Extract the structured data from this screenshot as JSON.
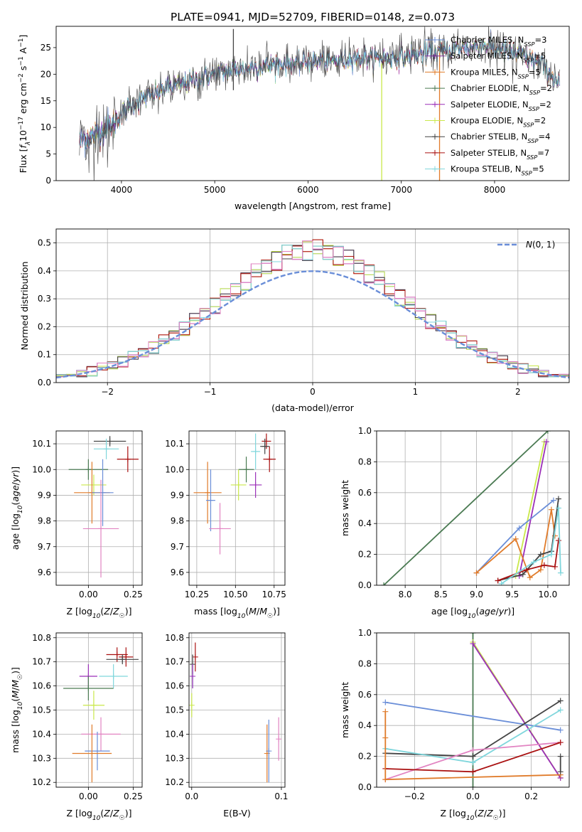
{
  "figure": {
    "title": "PLATE=0941, MJD=52709, FIBERID=0148, z=0.073"
  },
  "colors": {
    "Chabrier MILES": "#6a8ed8",
    "Salpeter MILES": "#7b2f9a",
    "Kroupa MILES": "#e07b2a",
    "Chabrier ELODIE": "#4a7a52",
    "Salpeter ELODIE": "#9b2fb8",
    "Kroupa ELODIE": "#c9e84a",
    "Chabrier STELIB": "#444444",
    "Salpeter STELIB": "#aa1111",
    "Kroupa STELIB": "#7fd6dc",
    "pink": "#e284c2",
    "normal": "#6a8ed8"
  },
  "chart_data": [
    {
      "id": "spectrum",
      "type": "line",
      "xlabel": "wavelength [Angstrom, rest frame]",
      "ylabel": "Flux [f_λ10^-17 erg cm^-2 s^-1 A^-1]",
      "xlim": [
        3300,
        8800
      ],
      "ylim": [
        0,
        29
      ],
      "xticks": [
        4000,
        5000,
        6000,
        7000,
        8000
      ],
      "yticks": [
        0,
        5,
        10,
        15,
        20,
        25
      ],
      "legend": "top-right",
      "legend_entries": [
        {
          "label": "Chabrier MILES, N",
          "sub": "SSP",
          "suffix": "=3"
        },
        {
          "label": "Salpeter MILES, N",
          "sub": "SSP",
          "suffix": "=5"
        },
        {
          "label": "Kroupa MILES, N",
          "sub": "SSP",
          "suffix": "=5"
        },
        {
          "label": "Chabrier ELODIE, N",
          "sub": "SSP",
          "suffix": "=2"
        },
        {
          "label": "Salpeter ELODIE, N",
          "sub": "SSP",
          "suffix": "=2"
        },
        {
          "label": "Kroupa ELODIE, N",
          "sub": "SSP",
          "suffix": "=2"
        },
        {
          "label": "Chabrier STELIB, N",
          "sub": "SSP",
          "suffix": "=4"
        },
        {
          "label": "Salpeter STELIB, N",
          "sub": "SSP",
          "suffix": "=7"
        },
        {
          "label": "Kroupa STELIB, N",
          "sub": "SSP",
          "suffix": "=5"
        }
      ],
      "continuum": {
        "x": [
          3550,
          3700,
          3900,
          4000,
          4100,
          4300,
          4500,
          4700,
          4900,
          5100,
          5300,
          5500,
          5700,
          5900,
          6100,
          6300,
          6500,
          6700,
          6900,
          7100,
          7300,
          7500,
          7700,
          7900,
          8100,
          8300,
          8500,
          8700
        ],
        "y": [
          7.5,
          8.5,
          10.5,
          12.5,
          14.0,
          16.0,
          17.5,
          18.5,
          19.5,
          20.5,
          21.0,
          21.5,
          22.0,
          22.0,
          22.5,
          22.5,
          23.0,
          23.0,
          23.0,
          23.5,
          24.0,
          24.5,
          25.0,
          25.5,
          24.5,
          23.5,
          22.0,
          18.0
        ]
      },
      "noise_sd": 1.1,
      "gaps": [
        {
          "x": 6790,
          "ymin": 0,
          "ymax": 22,
          "series": "Kroupa ELODIE"
        },
        {
          "x": 7410,
          "ymin": 0,
          "ymax": 24,
          "series": "Kroupa MILES"
        },
        {
          "x": 5200,
          "ymin": 17,
          "ymax": 28.5,
          "series": "Chabrier STELIB"
        }
      ]
    },
    {
      "id": "residuals",
      "type": "histogram",
      "xlabel": "(data-model)/error",
      "ylabel": "Normed distribution",
      "xlim": [
        -2.5,
        2.5
      ],
      "ylim": [
        0,
        0.55
      ],
      "xticks": [
        -2,
        -1,
        0,
        1,
        2
      ],
      "yticks": [
        0,
        0.1,
        0.2,
        0.3,
        0.4,
        0.5
      ],
      "grid": true,
      "bin_width": 0.1,
      "legend": "top-right",
      "legend_entry": "N(0,1)",
      "deviations": [
        0.051,
        -0.012,
        0.09,
        0.028,
        -0.08,
        0.035,
        -0.064,
        0.079,
        0.01,
        -0.046,
        0.072,
        -0.03,
        0.057,
        -0.088,
        0.004
      ]
    },
    {
      "id": "z-age",
      "type": "scatter",
      "xlabel": "Z [log10(Z/Z☉)]",
      "ylabel": "age [log10(age/yr)]",
      "xlim": [
        -0.18,
        0.3
      ],
      "ylim": [
        9.55,
        10.15
      ],
      "xticks": [
        0.0,
        0.25
      ],
      "yticks": [
        9.6,
        9.7,
        9.8,
        9.9,
        10.0,
        10.1
      ],
      "grid": true,
      "points": [
        {
          "series": "Chabrier STELIB",
          "x": 0.12,
          "xerr": 0.09,
          "y": 10.11,
          "yerr": 0.02
        },
        {
          "series": "Kroupa STELIB",
          "x": 0.1,
          "xerr": 0.07,
          "y": 10.08,
          "yerr": 0.04
        },
        {
          "series": "Salpeter STELIB",
          "x": 0.22,
          "xerr": 0.06,
          "y": 10.04,
          "yerr": 0.05
        },
        {
          "series": "Chabrier ELODIE",
          "x": 0.0,
          "xerr": 0.11,
          "y": 10.0,
          "yerr": 0.04
        },
        {
          "series": "Kroupa ELODIE",
          "x": 0.03,
          "xerr": 0.07,
          "y": 9.94,
          "yerr": 0.04
        },
        {
          "series": "Kroupa MILES",
          "x": 0.02,
          "xerr": 0.1,
          "y": 9.91,
          "yerr": 0.12
        },
        {
          "series": "Chabrier MILES",
          "x": 0.08,
          "xerr": 0.06,
          "y": 9.91,
          "yerr": 0.13
        },
        {
          "series": "pink",
          "x": 0.07,
          "xerr": 0.1,
          "y": 9.77,
          "yerr": 0.19
        }
      ]
    },
    {
      "id": "mass-age",
      "type": "scatter",
      "xlabel": "mass [log10(M/M☉)]",
      "ylabel": "",
      "xlim": [
        10.2,
        10.82
      ],
      "ylim": [
        9.55,
        10.15
      ],
      "xticks": [
        10.25,
        10.5,
        10.75
      ],
      "yticks": [
        9.6,
        9.7,
        9.8,
        9.9,
        10.0,
        10.1
      ],
      "grid": true,
      "points": [
        {
          "series": "Salpeter STELIB",
          "x": 10.7,
          "xerr": 0.03,
          "y": 10.11,
          "yerr": 0.03
        },
        {
          "series": "Chabrier STELIB",
          "x": 10.69,
          "xerr": 0.03,
          "y": 10.09,
          "yerr": 0.03
        },
        {
          "series": "Kroupa STELIB",
          "x": 10.63,
          "xerr": 0.03,
          "y": 10.07,
          "yerr": 0.07
        },
        {
          "series": "Salpeter STELIB",
          "x": 10.72,
          "xerr": 0.04,
          "y": 10.04,
          "yerr": 0.05
        },
        {
          "series": "Chabrier ELODIE",
          "x": 10.57,
          "xerr": 0.05,
          "y": 10.0,
          "yerr": 0.05
        },
        {
          "series": "Salpeter ELODIE",
          "x": 10.63,
          "xerr": 0.04,
          "y": 9.94,
          "yerr": 0.05
        },
        {
          "series": "Kroupa ELODIE",
          "x": 10.52,
          "xerr": 0.05,
          "y": 9.94,
          "yerr": 0.06
        },
        {
          "series": "Kroupa MILES",
          "x": 10.32,
          "xerr": 0.09,
          "y": 9.91,
          "yerr": 0.12
        },
        {
          "series": "Chabrier MILES",
          "x": 10.34,
          "xerr": 0.03,
          "y": 9.88,
          "yerr": 0.12
        },
        {
          "series": "pink",
          "x": 10.4,
          "xerr": 0.07,
          "y": 9.77,
          "yerr": 0.1
        }
      ]
    },
    {
      "id": "age-weight",
      "type": "line",
      "xlabel": "age [log10(age/yr)]",
      "ylabel": "mass weight",
      "xlim": [
        7.6,
        10.3
      ],
      "ylim": [
        0,
        1
      ],
      "xticks": [
        8.0,
        8.5,
        9.0,
        9.5,
        10.0
      ],
      "yticks": [
        0,
        0.2,
        0.4,
        0.6,
        0.8,
        1.0
      ],
      "grid": true,
      "series": [
        {
          "name": "Chabrier ELODIE",
          "x": [
            7.7,
            10.0
          ],
          "y": [
            0.0,
            1.0
          ]
        },
        {
          "name": "Kroupa ELODIE",
          "x": [
            9.55,
            9.95
          ],
          "y": [
            0.06,
            0.93
          ]
        },
        {
          "name": "Salpeter ELODIE",
          "x": [
            9.6,
            9.98
          ],
          "y": [
            0.06,
            0.93
          ]
        },
        {
          "name": "Chabrier MILES",
          "x": [
            9.0,
            9.6,
            10.08
          ],
          "y": [
            0.08,
            0.37,
            0.55
          ]
        },
        {
          "name": "Kroupa MILES",
          "x": [
            9.0,
            9.55,
            9.75,
            9.9,
            10.05,
            10.1
          ],
          "y": [
            0.08,
            0.3,
            0.05,
            0.1,
            0.49,
            0.32
          ]
        },
        {
          "name": "Chabrier STELIB",
          "x": [
            9.3,
            9.65,
            9.9,
            10.05,
            10.15
          ],
          "y": [
            0.03,
            0.07,
            0.2,
            0.22,
            0.56
          ]
        },
        {
          "name": "Salpeter STELIB",
          "x": [
            9.3,
            9.7,
            9.95,
            10.1,
            10.15
          ],
          "y": [
            0.03,
            0.1,
            0.13,
            0.12,
            0.29
          ]
        },
        {
          "name": "Kroupa STELIB",
          "x": [
            9.35,
            9.8,
            10.05,
            10.15,
            10.18
          ],
          "y": [
            0.01,
            0.15,
            0.2,
            0.5,
            0.08
          ]
        }
      ]
    },
    {
      "id": "z-mass",
      "type": "scatter",
      "xlabel": "Z [log10(Z/Z☉)]",
      "ylabel": "mass [log10(M/M☉)]",
      "xlim": [
        -0.18,
        0.3
      ],
      "ylim": [
        10.18,
        10.82
      ],
      "xticks": [
        0.0,
        0.25
      ],
      "yticks": [
        10.2,
        10.3,
        10.4,
        10.5,
        10.6,
        10.7,
        10.8
      ],
      "grid": true,
      "points": [
        {
          "series": "Salpeter STELIB",
          "x": 0.16,
          "xerr": 0.06,
          "y": 10.73,
          "yerr": 0.03
        },
        {
          "series": "Salpeter STELIB",
          "x": 0.21,
          "xerr": 0.04,
          "y": 10.72,
          "yerr": 0.04
        },
        {
          "series": "Chabrier STELIB",
          "x": 0.19,
          "xerr": 0.09,
          "y": 10.71,
          "yerr": 0.02
        },
        {
          "series": "Salpeter ELODIE",
          "x": 0.0,
          "xerr": 0.05,
          "y": 10.64,
          "yerr": 0.05
        },
        {
          "series": "Kroupa STELIB",
          "x": 0.14,
          "xerr": 0.08,
          "y": 10.64,
          "yerr": 0.05
        },
        {
          "series": "Chabrier ELODIE",
          "x": 0.0,
          "xerr": 0.14,
          "y": 10.59,
          "yerr": 0.05
        },
        {
          "series": "Kroupa ELODIE",
          "x": 0.03,
          "xerr": 0.06,
          "y": 10.52,
          "yerr": 0.06
        },
        {
          "series": "pink",
          "x": 0.07,
          "xerr": 0.11,
          "y": 10.4,
          "yerr": 0.07
        },
        {
          "series": "Chabrier MILES",
          "x": 0.05,
          "xerr": 0.07,
          "y": 10.33,
          "yerr": 0.08
        },
        {
          "series": "Kroupa MILES",
          "x": 0.02,
          "xerr": 0.11,
          "y": 10.32,
          "yerr": 0.12
        }
      ]
    },
    {
      "id": "ebv-mass",
      "type": "scatter",
      "xlabel": "E(B-V)",
      "ylabel": "",
      "xlim": [
        -0.003,
        0.104
      ],
      "ylim": [
        10.18,
        10.82
      ],
      "xticks": [
        0.0,
        0.1
      ],
      "yticks": [
        10.2,
        10.3,
        10.4,
        10.5,
        10.6,
        10.7,
        10.8
      ],
      "grid": true,
      "points": [
        {
          "series": "Salpeter STELIB",
          "x": 0.004,
          "y": 10.72,
          "yerr": 0.06
        },
        {
          "series": "Chabrier STELIB",
          "x": 0.001,
          "y": 10.69,
          "yerr": 0.04
        },
        {
          "series": "Kroupa STELIB",
          "x": 0.001,
          "y": 10.64,
          "yerr": 0.05
        },
        {
          "series": "Salpeter ELODIE",
          "x": 0.001,
          "y": 10.64,
          "yerr": 0.05
        },
        {
          "series": "Kroupa ELODIE",
          "x": 0.0,
          "y": 10.52,
          "yerr": 0.05
        },
        {
          "series": "Kroupa MILES",
          "x": 0.084,
          "y": 10.32,
          "yerr": 0.12
        },
        {
          "series": "Chabrier MILES",
          "x": 0.086,
          "y": 10.33,
          "yerr": 0.13
        },
        {
          "series": "pink",
          "x": 0.097,
          "y": 10.38,
          "yerr": 0.09
        }
      ]
    },
    {
      "id": "z-weight",
      "type": "line",
      "xlabel": "Z [log10(Z/Z☉)]",
      "ylabel": "mass weight",
      "xlim": [
        -0.33,
        0.33
      ],
      "ylim": [
        0,
        1
      ],
      "xticks": [
        -0.2,
        0.0,
        0.2
      ],
      "yticks": [
        0,
        0.2,
        0.4,
        0.6,
        0.8,
        1.0
      ],
      "grid": true,
      "series": [
        {
          "name": "Chabrier ELODIE",
          "x": [
            0.0,
            0.0
          ],
          "y": [
            0.0,
            1.0
          ]
        },
        {
          "name": "Kroupa ELODIE",
          "x": [
            0.0,
            0.3
          ],
          "y": [
            0.94,
            0.06
          ]
        },
        {
          "name": "Salpeter ELODIE",
          "x": [
            0.0,
            0.3
          ],
          "y": [
            0.93,
            0.06
          ]
        },
        {
          "name": "Chabrier MILES",
          "x": [
            -0.3,
            0.3
          ],
          "y": [
            0.55,
            0.37
          ]
        },
        {
          "name": "Chabrier STELIB",
          "x": [
            -0.3,
            0.0,
            0.3
          ],
          "y": [
            0.22,
            0.2,
            0.56
          ]
        },
        {
          "name": "Kroupa STELIB",
          "x": [
            -0.3,
            0.0,
            0.3
          ],
          "y": [
            0.25,
            0.16,
            0.5
          ]
        },
        {
          "name": "pink",
          "x": [
            -0.3,
            0.0,
            0.3
          ],
          "y": [
            0.05,
            0.24,
            0.29
          ]
        },
        {
          "name": "Salpeter STELIB",
          "x": [
            -0.3,
            0.0,
            0.3
          ],
          "y": [
            0.12,
            0.1,
            0.29
          ]
        },
        {
          "name": "Kroupa MILES",
          "x": [
            -0.3,
            -0.3,
            -0.3,
            0.3
          ],
          "y": [
            0.49,
            0.32,
            0.05,
            0.08
          ]
        },
        {
          "name": "Chabrier STELIB",
          "x": [
            0.3,
            0.3
          ],
          "y": [
            0.2,
            0.1
          ]
        }
      ]
    }
  ]
}
